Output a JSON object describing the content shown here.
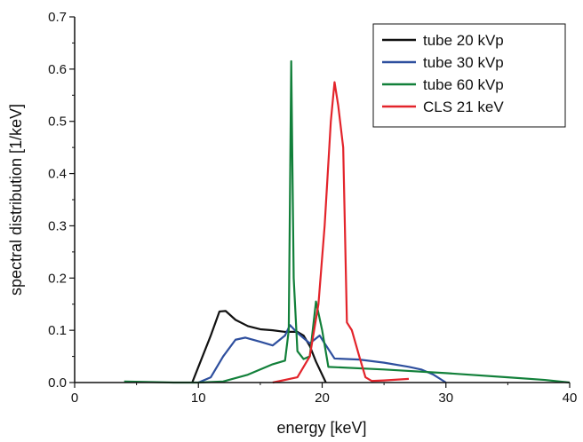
{
  "chart_data": {
    "type": "line",
    "x_label": "energy [keV]",
    "y_label": "spectral distribution [1/keV]",
    "xlim": [
      0,
      40
    ],
    "ylim": [
      0,
      0.7
    ],
    "xticks": [
      0,
      10,
      20,
      30,
      40
    ],
    "yticks": [
      {
        "value": 0,
        "label": "0.0"
      },
      0.1,
      0.2,
      0.3,
      0.4,
      0.5,
      0.6,
      0.7
    ],
    "legend_position": "upper right",
    "series": [
      {
        "name": "tube 20 kVp",
        "color": "#111111",
        "x": [
          9.5,
          10,
          11,
          11.7,
          12.2,
          13,
          14,
          15,
          16,
          17,
          18,
          18.5,
          19,
          19.5,
          20.3
        ],
        "values": [
          0,
          0.03,
          0.09,
          0.136,
          0.137,
          0.12,
          0.108,
          0.102,
          0.1,
          0.097,
          0.097,
          0.09,
          0.07,
          0.04,
          0
        ]
      },
      {
        "name": "tube 30 kVp",
        "color": "#2e4f9e",
        "x": [
          10,
          11,
          12,
          13,
          13.8,
          15,
          16,
          17,
          17.4,
          18,
          19,
          19.8,
          20.2,
          21,
          23,
          25,
          27,
          28,
          29,
          30
        ],
        "values": [
          0,
          0.01,
          0.05,
          0.082,
          0.086,
          0.078,
          0.071,
          0.09,
          0.11,
          0.095,
          0.075,
          0.09,
          0.075,
          0.046,
          0.044,
          0.038,
          0.03,
          0.025,
          0.015,
          0
        ]
      },
      {
        "name": "tube 60 kVp",
        "color": "#12803a",
        "x": [
          4,
          8,
          10,
          12,
          14,
          15,
          16,
          17,
          17.3,
          17.5,
          17.7,
          18,
          18.5,
          19,
          19.5,
          20,
          20.5,
          25,
          30,
          35,
          38,
          40
        ],
        "values": [
          0.002,
          0,
          0,
          0.002,
          0.015,
          0.025,
          0.035,
          0.042,
          0.1,
          0.615,
          0.2,
          0.06,
          0.045,
          0.05,
          0.155,
          0.1,
          0.03,
          0.025,
          0.018,
          0.01,
          0.005,
          0
        ]
      },
      {
        "name": "CLS 21 keV",
        "color": "#e3242b",
        "x": [
          16,
          18,
          19,
          19.7,
          20.2,
          20.7,
          21,
          21.3,
          21.7,
          22,
          22.4,
          23,
          23.5,
          24,
          25,
          27
        ],
        "values": [
          0,
          0.01,
          0.05,
          0.15,
          0.3,
          0.5,
          0.575,
          0.53,
          0.45,
          0.115,
          0.1,
          0.05,
          0.01,
          0.003,
          0.004,
          0.007
        ]
      }
    ]
  }
}
